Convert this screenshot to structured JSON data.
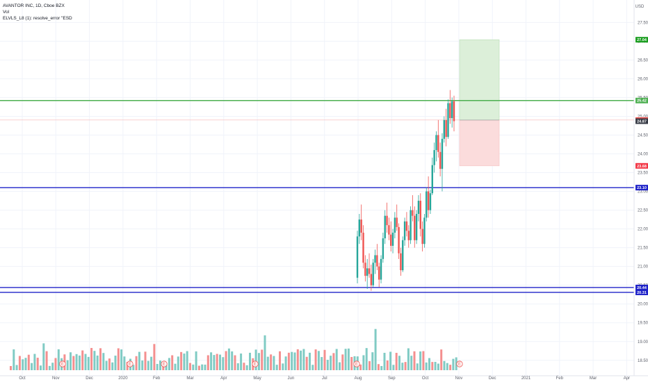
{
  "legend": {
    "title": "AVANTOR INC, 1D, Cboe BZX",
    "vol": "Vol",
    "indicator": "ELVLS_L8 (1): resolve_error \"ESD"
  },
  "currency": "USD",
  "colors": {
    "up": "#26a69a",
    "down": "#ef5350",
    "vol_up": "#80cbc4",
    "vol_down": "#f48f8f",
    "target_zone": "#dcefd9",
    "stop_zone": "#fbdcdc",
    "support_line": "#1e22c8",
    "target_line": "#4caf50"
  },
  "chart_data": {
    "type": "candlestick",
    "ylim": [
      18.2,
      27.95
    ],
    "y_ticks": [
      "18.50",
      "19.00",
      "19.50",
      "20.00",
      "20.50",
      "21.00",
      "21.50",
      "22.00",
      "22.50",
      "23.00",
      "23.50",
      "24.00",
      "24.50",
      "25.00",
      "25.50",
      "26.00",
      "26.50",
      "27.00",
      "27.50"
    ],
    "x_ticks": [
      "Oct",
      "Nov",
      "Dec",
      "2020",
      "Feb",
      "Mar",
      "Apr",
      "May",
      "Jun",
      "Jul",
      "Aug",
      "Sep",
      "Oct",
      "Nov",
      "Dec",
      "2021",
      "Feb",
      "Mar",
      "Apr"
    ],
    "horizontal_levels": [
      {
        "value": 25.42,
        "label": "25.42",
        "kind": "target"
      },
      {
        "value": 23.1,
        "label": "23.10",
        "kind": "support"
      },
      {
        "value": 20.44,
        "label": "20.44",
        "kind": "support"
      },
      {
        "value": 20.31,
        "label": "20.31",
        "kind": "support"
      }
    ],
    "price_tags": [
      {
        "value": 27.04,
        "label": "27.04",
        "color": "#1b9e20"
      },
      {
        "value": 24.9,
        "label": "24.90",
        "color": "#ef5350"
      },
      {
        "value": 24.87,
        "label": "24.87",
        "color": "#363a45"
      },
      {
        "value": 23.68,
        "label": "23.68",
        "color": "#f23645"
      }
    ],
    "position": {
      "entry": 24.9,
      "target": 27.04,
      "stop": 23.68
    },
    "earnings_markers": [
      "E",
      "E",
      "E",
      "E",
      "E",
      "E"
    ],
    "candles": [
      {
        "o": 20.7,
        "h": 21.95,
        "l": 20.55,
        "c": 21.8
      },
      {
        "o": 21.8,
        "h": 22.4,
        "l": 21.6,
        "c": 22.25
      },
      {
        "o": 22.25,
        "h": 22.65,
        "l": 21.7,
        "c": 21.9
      },
      {
        "o": 21.9,
        "h": 22.1,
        "l": 20.95,
        "c": 21.1
      },
      {
        "o": 21.1,
        "h": 21.3,
        "l": 20.6,
        "c": 20.75
      },
      {
        "o": 20.75,
        "h": 21.2,
        "l": 20.4,
        "c": 20.95
      },
      {
        "o": 20.95,
        "h": 21.35,
        "l": 20.7,
        "c": 20.8
      },
      {
        "o": 20.8,
        "h": 21.05,
        "l": 20.35,
        "c": 20.5
      },
      {
        "o": 20.5,
        "h": 21.2,
        "l": 20.45,
        "c": 21.1
      },
      {
        "o": 21.1,
        "h": 21.45,
        "l": 20.8,
        "c": 21.3
      },
      {
        "o": 21.3,
        "h": 21.6,
        "l": 20.9,
        "c": 21.0
      },
      {
        "o": 21.0,
        "h": 21.1,
        "l": 20.45,
        "c": 20.65
      },
      {
        "o": 20.65,
        "h": 21.3,
        "l": 20.55,
        "c": 21.2
      },
      {
        "o": 21.2,
        "h": 21.9,
        "l": 21.1,
        "c": 21.75
      },
      {
        "o": 21.75,
        "h": 22.5,
        "l": 21.6,
        "c": 22.35
      },
      {
        "o": 22.35,
        "h": 22.7,
        "l": 21.9,
        "c": 22.1
      },
      {
        "o": 22.1,
        "h": 22.3,
        "l": 21.7,
        "c": 21.85
      },
      {
        "o": 21.85,
        "h": 22.2,
        "l": 21.4,
        "c": 21.55
      },
      {
        "o": 21.55,
        "h": 22.0,
        "l": 21.35,
        "c": 21.9
      },
      {
        "o": 21.9,
        "h": 22.45,
        "l": 21.75,
        "c": 22.3
      },
      {
        "o": 22.3,
        "h": 22.65,
        "l": 21.95,
        "c": 22.05
      },
      {
        "o": 22.05,
        "h": 22.15,
        "l": 21.2,
        "c": 21.35
      },
      {
        "o": 21.35,
        "h": 21.5,
        "l": 20.75,
        "c": 20.9
      },
      {
        "o": 20.9,
        "h": 21.8,
        "l": 20.85,
        "c": 21.7
      },
      {
        "o": 21.7,
        "h": 22.3,
        "l": 21.55,
        "c": 22.2
      },
      {
        "o": 22.2,
        "h": 22.45,
        "l": 21.8,
        "c": 21.95
      },
      {
        "o": 21.95,
        "h": 22.1,
        "l": 21.5,
        "c": 21.7
      },
      {
        "o": 21.7,
        "h": 22.6,
        "l": 21.6,
        "c": 22.5
      },
      {
        "o": 22.5,
        "h": 22.9,
        "l": 22.2,
        "c": 22.35
      },
      {
        "o": 22.35,
        "h": 22.6,
        "l": 21.5,
        "c": 21.7
      },
      {
        "o": 21.7,
        "h": 22.5,
        "l": 21.6,
        "c": 22.4
      },
      {
        "o": 22.4,
        "h": 22.9,
        "l": 22.2,
        "c": 22.75
      },
      {
        "o": 22.75,
        "h": 22.95,
        "l": 21.8,
        "c": 22.0
      },
      {
        "o": 22.0,
        "h": 22.2,
        "l": 21.4,
        "c": 21.6
      },
      {
        "o": 21.6,
        "h": 22.4,
        "l": 21.5,
        "c": 22.3
      },
      {
        "o": 22.3,
        "h": 23.1,
        "l": 22.2,
        "c": 23.0
      },
      {
        "o": 23.0,
        "h": 23.4,
        "l": 22.3,
        "c": 22.5
      },
      {
        "o": 22.5,
        "h": 23.05,
        "l": 22.4,
        "c": 22.95
      },
      {
        "o": 22.95,
        "h": 23.9,
        "l": 22.9,
        "c": 23.7
      },
      {
        "o": 23.7,
        "h": 24.3,
        "l": 23.5,
        "c": 24.1
      },
      {
        "o": 24.1,
        "h": 24.6,
        "l": 23.8,
        "c": 24.5
      },
      {
        "o": 24.5,
        "h": 24.9,
        "l": 23.9,
        "c": 24.05
      },
      {
        "o": 24.05,
        "h": 24.3,
        "l": 23.4,
        "c": 23.6
      },
      {
        "o": 23.6,
        "h": 24.55,
        "l": 23.0,
        "c": 24.4
      },
      {
        "o": 24.4,
        "h": 25.0,
        "l": 24.3,
        "c": 24.9
      },
      {
        "o": 24.9,
        "h": 25.2,
        "l": 24.2,
        "c": 24.45
      },
      {
        "o": 24.45,
        "h": 25.45,
        "l": 24.4,
        "c": 25.35
      },
      {
        "o": 25.35,
        "h": 25.7,
        "l": 24.8,
        "c": 24.95
      },
      {
        "o": 24.95,
        "h": 25.5,
        "l": 24.7,
        "c": 25.4
      },
      {
        "o": 25.4,
        "h": 25.55,
        "l": 24.6,
        "c": 24.87
      }
    ]
  }
}
